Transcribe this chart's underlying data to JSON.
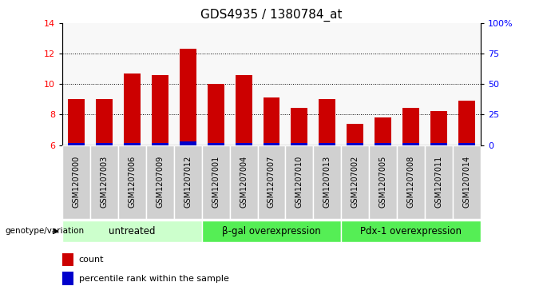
{
  "title": "GDS4935 / 1380784_at",
  "samples": [
    "GSM1207000",
    "GSM1207003",
    "GSM1207006",
    "GSM1207009",
    "GSM1207012",
    "GSM1207001",
    "GSM1207004",
    "GSM1207007",
    "GSM1207010",
    "GSM1207013",
    "GSM1207002",
    "GSM1207005",
    "GSM1207008",
    "GSM1207011",
    "GSM1207014"
  ],
  "counts": [
    9.0,
    9.0,
    10.7,
    10.6,
    12.3,
    10.0,
    10.6,
    9.1,
    8.45,
    9.0,
    7.4,
    7.8,
    8.45,
    8.25,
    8.9
  ],
  "percentile_heights": [
    0.12,
    0.12,
    0.15,
    0.12,
    0.22,
    0.12,
    0.12,
    0.12,
    0.12,
    0.12,
    0.12,
    0.12,
    0.12,
    0.12,
    0.15
  ],
  "bar_bottom": 6.0,
  "ylim_left": [
    6,
    14
  ],
  "ylim_right": [
    0,
    100
  ],
  "yticks_left": [
    6,
    8,
    10,
    12,
    14
  ],
  "yticks_right": [
    0,
    25,
    50,
    75,
    100
  ],
  "ytick_labels_right": [
    "0",
    "25",
    "50",
    "75",
    "100%"
  ],
  "groups": [
    {
      "label": "untreated",
      "start": 0,
      "end": 5,
      "color": "#ccffcc"
    },
    {
      "label": "β-gal overexpression",
      "start": 5,
      "end": 10,
      "color": "#55ee55"
    },
    {
      "label": "Pdx-1 overexpression",
      "start": 10,
      "end": 15,
      "color": "#55ee55"
    }
  ],
  "bar_color_red": "#cc0000",
  "bar_color_blue": "#0000cc",
  "bar_width": 0.6,
  "genotype_label": "genotype/variation",
  "legend_count": "count",
  "legend_percentile": "percentile rank within the sample",
  "bg_color_plot": "#ffffff",
  "bg_color_sample_cell": "#d0d0d0",
  "title_fontsize": 11,
  "tick_label_fontsize": 7,
  "group_label_fontsize": 8.5
}
